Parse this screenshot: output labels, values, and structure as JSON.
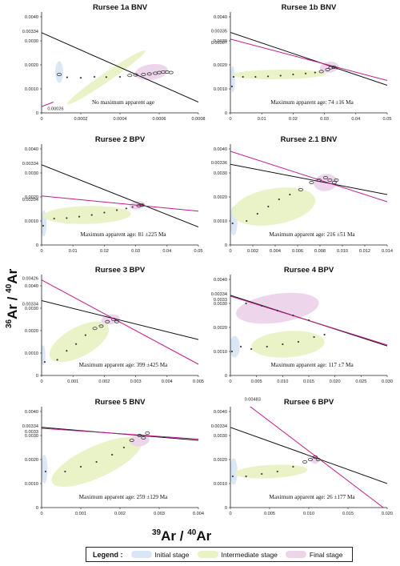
{
  "y_axis_label": "36Ar / 40Ar",
  "y_label_parts": {
    "sup1": "36",
    "base1": "Ar / ",
    "sup2": "40",
    "base2": "Ar"
  },
  "x_axis_label": "39Ar / 40Ar",
  "x_label_parts": {
    "sup1": "39",
    "base1": "Ar / ",
    "sup2": "40",
    "base2": "Ar"
  },
  "legend": {
    "title": "Legend :",
    "items": [
      {
        "label": "Initial stage",
        "color": "#d8e6f5"
      },
      {
        "label": "Intermediate stage",
        "color": "#e9f2c4"
      },
      {
        "label": "Final stage",
        "color": "#ecd4ea"
      }
    ]
  },
  "colors": {
    "line_black": "#111111",
    "line_magenta": "#c21c8c",
    "points": "#333333",
    "initial": "#d8e6f5",
    "intermediate": "#e9f2c4",
    "final": "#ecd4ea"
  },
  "chart_data": [
    {
      "type": "scatter",
      "title": "Rursee 1a BNV",
      "annotation": "No maximum apparent age",
      "xlim": [
        0,
        0.0008
      ],
      "ylim": [
        0,
        0.0042
      ],
      "x_ticks": [
        "0",
        "0.0002",
        "0.0004",
        "0.0006",
        "0.0008"
      ],
      "y_ticks": [
        "0",
        "0.0010",
        "0.0020",
        "0.0030",
        "0.0040"
      ],
      "special_y_labels": [
        {
          "value": 0.00334,
          "label": "0.00334"
        }
      ],
      "lines": [
        {
          "color": "black",
          "y0": 0.00334,
          "x_end": 0.0008,
          "y_end": 0.00045
        },
        {
          "color": "magenta",
          "y0": 0.00026,
          "x_end": 6e-05,
          "y_end": 0.00045
        }
      ],
      "line_labels": [
        {
          "text": "0.00026",
          "x": 3e-05,
          "y": 0.00012
        }
      ],
      "blobs": [
        {
          "stage": "initial",
          "cx": 9e-05,
          "cy": 0.0017,
          "w": 4e-05,
          "h": 0.0009
        },
        {
          "stage": "intermediate",
          "cx": 0.00033,
          "cy": 0.00148,
          "w": 0.00048,
          "h": 0.00038
        },
        {
          "stage": "final",
          "cx": 0.00056,
          "cy": 0.0017,
          "w": 0.00017,
          "h": 0.00065
        }
      ],
      "points": [
        [
          9e-05,
          0.0016,
          2
        ],
        [
          0.00013,
          0.00148,
          1
        ],
        [
          0.0002,
          0.00146,
          1
        ],
        [
          0.00027,
          0.0015,
          1
        ],
        [
          0.00033,
          0.00149,
          1
        ],
        [
          0.0004,
          0.0015,
          1
        ],
        [
          0.00045,
          0.00156,
          2
        ],
        [
          0.00048,
          0.00158,
          2
        ],
        [
          0.00052,
          0.0016,
          2
        ],
        [
          0.00055,
          0.00162,
          2
        ],
        [
          0.00058,
          0.00165,
          2
        ],
        [
          0.0006,
          0.00168,
          2
        ],
        [
          0.00062,
          0.0017,
          2
        ],
        [
          0.00064,
          0.0017,
          2
        ],
        [
          0.00066,
          0.00168,
          2
        ]
      ]
    },
    {
      "type": "scatter",
      "title": "Rursee 1b BNV",
      "annotation": "Maximum apparent age: 74 ±16 Ma",
      "xlim": [
        0,
        0.05
      ],
      "ylim": [
        0,
        0.0042
      ],
      "x_ticks": [
        "0",
        "0.01",
        "0.02",
        "0.03",
        "0.04",
        "0.05"
      ],
      "y_ticks": [
        "0",
        "0.0010",
        "0.0020",
        "0.0030",
        "0.0040"
      ],
      "special_y_labels": [
        {
          "value": 0.00335,
          "label": "0.00335"
        },
        {
          "value": 0.00307,
          "label": "0.00307"
        }
      ],
      "lines": [
        {
          "color": "black",
          "y0": 0.00335,
          "x_end": 0.05,
          "y_end": 0.00115
        },
        {
          "color": "magenta",
          "y0": 0.00307,
          "x_end": 0.05,
          "y_end": 0.00135
        }
      ],
      "line_labels": [],
      "blobs": [
        {
          "stage": "initial",
          "cx": 0.0007,
          "cy": 0.0014,
          "w": 0.0016,
          "h": 0.0011
        },
        {
          "stage": "intermediate",
          "cx": 0.0155,
          "cy": 0.0016,
          "w": 0.03,
          "h": 0.0004
        },
        {
          "stage": "final",
          "cx": 0.0315,
          "cy": 0.0019,
          "w": 0.006,
          "h": 0.00045
        }
      ],
      "points": [
        [
          0.0005,
          0.0011,
          1
        ],
        [
          0.001,
          0.0015,
          1
        ],
        [
          0.004,
          0.0015,
          1
        ],
        [
          0.008,
          0.0015,
          1
        ],
        [
          0.012,
          0.00152,
          1
        ],
        [
          0.016,
          0.00155,
          1
        ],
        [
          0.02,
          0.0016,
          1
        ],
        [
          0.024,
          0.00164,
          1
        ],
        [
          0.027,
          0.00168,
          1
        ],
        [
          0.029,
          0.00172,
          2
        ],
        [
          0.031,
          0.0018,
          2
        ],
        [
          0.032,
          0.00188,
          2
        ],
        [
          0.033,
          0.0019,
          2
        ],
        [
          0.034,
          0.00185,
          1
        ]
      ]
    },
    {
      "type": "scatter",
      "title": "Rursee 2 BPV",
      "annotation": "Maximum apparent age: 81 ±225 Ma",
      "xlim": [
        0,
        0.05
      ],
      "ylim": [
        0,
        0.0042
      ],
      "x_ticks": [
        "0",
        "0.01",
        "0.02",
        "0.03",
        "0.04",
        "0.05"
      ],
      "y_ticks": [
        "0",
        "0.0010",
        "0.0020",
        "0.0030",
        "0.0040"
      ],
      "special_y_labels": [
        {
          "value": 0.00334,
          "label": "0.00334"
        },
        {
          "value": 0.00204,
          "label": "0.00204"
        }
      ],
      "lines": [
        {
          "color": "black",
          "y0": 0.00334,
          "x_end": 0.05,
          "y_end": 0.00075
        },
        {
          "color": "magenta",
          "y0": 0.00204,
          "x_end": 0.05,
          "y_end": 0.00141
        }
      ],
      "line_labels": [],
      "blobs": [
        {
          "stage": "initial",
          "cx": 0.0007,
          "cy": 0.0009,
          "w": 0.0017,
          "h": 0.0011
        },
        {
          "stage": "intermediate",
          "cx": 0.0145,
          "cy": 0.00125,
          "w": 0.028,
          "h": 0.00075
        },
        {
          "stage": "final",
          "cx": 0.0305,
          "cy": 0.00165,
          "w": 0.005,
          "h": 0.00035
        }
      ],
      "points": [
        [
          0.0005,
          0.0008,
          1
        ],
        [
          0.004,
          0.0011,
          1
        ],
        [
          0.008,
          0.00112,
          1
        ],
        [
          0.012,
          0.00118,
          1
        ],
        [
          0.016,
          0.00125,
          1
        ],
        [
          0.02,
          0.00135,
          1
        ],
        [
          0.024,
          0.00145,
          1
        ],
        [
          0.027,
          0.00152,
          1
        ],
        [
          0.029,
          0.00158,
          1
        ],
        [
          0.031,
          0.00163,
          2
        ],
        [
          0.032,
          0.00166,
          2
        ]
      ]
    },
    {
      "type": "scatter",
      "title": "Rursee 2.1 BNV",
      "annotation": "Maximum apparent age: 216 ±51 Ma",
      "xlim": [
        0,
        0.0145
      ],
      "ylim": [
        0,
        0.0042
      ],
      "x_ticks": [
        "0",
        "0.002",
        "0.004",
        "0.006",
        "0.008",
        "0.010",
        "0.012",
        "0.014"
      ],
      "y_ticks": [
        "0",
        "0.0010",
        "0.0020",
        "0.0030",
        "0.0040"
      ],
      "special_y_labels": [
        {
          "value": 0.00336,
          "label": "0.00336"
        }
      ],
      "lines": [
        {
          "color": "black",
          "y0": 0.00336,
          "x_end": 0.0145,
          "y_end": 0.0021
        },
        {
          "color": "magenta",
          "y0": 0.0039,
          "x_end": 0.0145,
          "y_end": 0.0018
        }
      ],
      "line_labels": [],
      "blobs": [
        {
          "stage": "initial",
          "cx": 0.0003,
          "cy": 0.001,
          "w": 0.0007,
          "h": 0.0012
        },
        {
          "stage": "intermediate",
          "cx": 0.004,
          "cy": 0.0016,
          "w": 0.0078,
          "h": 0.0015
        },
        {
          "stage": "final",
          "cx": 0.0088,
          "cy": 0.0026,
          "w": 0.0022,
          "h": 0.0007
        }
      ],
      "points": [
        [
          0.0002,
          0.0009,
          1
        ],
        [
          0.0015,
          0.001,
          1
        ],
        [
          0.0025,
          0.0013,
          1
        ],
        [
          0.0035,
          0.0016,
          1
        ],
        [
          0.0045,
          0.0019,
          1
        ],
        [
          0.0055,
          0.0021,
          1
        ],
        [
          0.0065,
          0.0023,
          2
        ],
        [
          0.0075,
          0.0026,
          2
        ],
        [
          0.0082,
          0.0027,
          2
        ],
        [
          0.0088,
          0.0028,
          2
        ],
        [
          0.0092,
          0.0027,
          2
        ],
        [
          0.0096,
          0.0026,
          2
        ],
        [
          0.0098,
          0.0027,
          2
        ]
      ]
    },
    {
      "type": "scatter",
      "title": "Rursee 3 BPV",
      "annotation": "Maximum apparent age: 399 ±425 Ma",
      "xlim": [
        0,
        0.005
      ],
      "ylim": [
        0,
        0.0045
      ],
      "x_ticks": [
        "0",
        "0.001",
        "0.002",
        "0.003",
        "0.004",
        "0.005"
      ],
      "y_ticks": [
        "0",
        "0.0010",
        "0.0020",
        "0.0030",
        "0.0040"
      ],
      "special_y_labels": [
        {
          "value": 0.00426,
          "label": "0.00426"
        },
        {
          "value": 0.00334,
          "label": "0.00334"
        }
      ],
      "lines": [
        {
          "color": "black",
          "y0": 0.00334,
          "x_end": 0.005,
          "y_end": 0.0016
        },
        {
          "color": "magenta",
          "y0": 0.00426,
          "x_end": 0.005,
          "y_end": 0.0005
        }
      ],
      "line_labels": [],
      "blobs": [
        {
          "stage": "initial",
          "cx": 5e-05,
          "cy": 0.0009,
          "w": 0.00014,
          "h": 0.0009
        },
        {
          "stage": "intermediate",
          "cx": 0.0012,
          "cy": 0.0015,
          "w": 0.0021,
          "h": 0.0013
        },
        {
          "stage": "final",
          "cx": 0.0022,
          "cy": 0.0025,
          "w": 0.0006,
          "h": 0.00045
        }
      ],
      "points": [
        [
          0.0001,
          0.0006,
          1
        ],
        [
          0.0005,
          0.0007,
          1
        ],
        [
          0.0008,
          0.0011,
          1
        ],
        [
          0.0011,
          0.0014,
          1
        ],
        [
          0.0014,
          0.0018,
          1
        ],
        [
          0.0017,
          0.0021,
          2
        ],
        [
          0.0019,
          0.0022,
          2
        ],
        [
          0.0021,
          0.0024,
          2
        ],
        [
          0.0023,
          0.0025,
          2
        ],
        [
          0.0024,
          0.0024,
          2
        ]
      ]
    },
    {
      "type": "scatter",
      "title": "Rursee 4 BPV",
      "annotation": "Maximum apparent age: 117 ±7 Ma",
      "xlim": [
        0,
        0.03
      ],
      "ylim": [
        0,
        0.0042
      ],
      "x_ticks": [
        "0",
        "0.005",
        "0.010",
        "0.015",
        "0.020",
        "0.025",
        "0.030"
      ],
      "y_ticks": [
        "0",
        "0.0010",
        "0.0020",
        "0.0030",
        "0.0040"
      ],
      "special_y_labels": [
        {
          "value": 0.00334,
          "label": "0.00334"
        },
        {
          "value": 0.0033,
          "label": "0.0033"
        }
      ],
      "lines": [
        {
          "color": "black",
          "y0": 0.00334,
          "x_end": 0.03,
          "y_end": 0.00123
        },
        {
          "color": "magenta",
          "y0": 0.0033,
          "x_end": 0.03,
          "y_end": 0.00127
        }
      ],
      "line_labels": [],
      "blobs": [
        {
          "stage": "initial",
          "cx": 0.0008,
          "cy": 0.0012,
          "w": 0.002,
          "h": 0.0009
        },
        {
          "stage": "intermediate",
          "cx": 0.011,
          "cy": 0.0013,
          "w": 0.014,
          "h": 0.0011
        },
        {
          "stage": "final",
          "cx": 0.009,
          "cy": 0.0028,
          "w": 0.016,
          "h": 0.0012
        }
      ],
      "points": [
        [
          0.0003,
          0.001,
          1
        ],
        [
          0.002,
          0.0012,
          1
        ],
        [
          0.004,
          0.0011,
          1
        ],
        [
          0.007,
          0.0012,
          1
        ],
        [
          0.01,
          0.0013,
          1
        ],
        [
          0.013,
          0.0014,
          1
        ],
        [
          0.016,
          0.0016,
          1
        ],
        [
          0.018,
          0.0017,
          1
        ],
        [
          0.003,
          0.003,
          1
        ],
        [
          0.006,
          0.0029,
          1
        ],
        [
          0.009,
          0.0027,
          1
        ],
        [
          0.012,
          0.0025,
          1
        ],
        [
          0.015,
          0.0023,
          1
        ]
      ]
    },
    {
      "type": "scatter",
      "title": "Rursee 5 BNV",
      "annotation": "Maximum apparent age: 259 ±129 Ma",
      "xlim": [
        0,
        0.004
      ],
      "ylim": [
        0,
        0.0042
      ],
      "x_ticks": [
        "0",
        "0.001",
        "0.002",
        "0.003",
        "0.004"
      ],
      "y_ticks": [
        "0",
        "0.0010",
        "0.0020",
        "0.0030",
        "0.0040"
      ],
      "special_y_labels": [
        {
          "value": 0.00334,
          "label": "0.00334"
        },
        {
          "value": 0.0033,
          "label": "0.0033"
        }
      ],
      "lines": [
        {
          "color": "black",
          "y0": 0.00334,
          "x_end": 0.004,
          "y_end": 0.0028
        },
        {
          "color": "magenta",
          "y0": 0.0033,
          "x_end": 0.004,
          "y_end": 0.00285
        }
      ],
      "line_labels": [],
      "blobs": [
        {
          "stage": "initial",
          "cx": 7e-05,
          "cy": 0.0016,
          "w": 0.00016,
          "h": 0.0012
        },
        {
          "stage": "intermediate",
          "cx": 0.0014,
          "cy": 0.0019,
          "w": 0.0025,
          "h": 0.0013
        },
        {
          "stage": "final",
          "cx": 0.0025,
          "cy": 0.0028,
          "w": 0.0005,
          "h": 0.0005
        }
      ],
      "points": [
        [
          0.0001,
          0.0015,
          1
        ],
        [
          0.0006,
          0.0015,
          1
        ],
        [
          0.001,
          0.0017,
          1
        ],
        [
          0.0014,
          0.0019,
          1
        ],
        [
          0.0018,
          0.0022,
          1
        ],
        [
          0.0021,
          0.0025,
          1
        ],
        [
          0.0023,
          0.0028,
          2
        ],
        [
          0.0025,
          0.003,
          2
        ],
        [
          0.0026,
          0.0029,
          2
        ],
        [
          0.0027,
          0.0031,
          2
        ]
      ]
    },
    {
      "type": "scatter",
      "title": "Rursee 6 BPV",
      "annotation": "Maximum apparent age: 26 ±177 Ma",
      "xlim": [
        0,
        0.02
      ],
      "ylim": [
        0,
        0.0042
      ],
      "x_ticks": [
        "0",
        "0.005",
        "0.010",
        "0.015",
        "0.020"
      ],
      "y_ticks": [
        "0",
        "0.0010",
        "0.0020",
        "0.0030",
        "0.0040"
      ],
      "special_y_labels": [
        {
          "value": 0.00334,
          "label": "0.00334"
        }
      ],
      "lines": [
        {
          "color": "black",
          "y0": 0.00334,
          "x_end": 0.02,
          "y_end": 0.001
        },
        {
          "color": "magenta",
          "y0": 0.00483,
          "x_end": 0.0195,
          "y_end": 0
        }
      ],
      "line_labels": [
        {
          "text": "0.00483",
          "x": 0.0018,
          "y": 0.00445
        }
      ],
      "blobs": [
        {
          "stage": "initial",
          "cx": 0.0004,
          "cy": 0.0015,
          "w": 0.001,
          "h": 0.0011
        },
        {
          "stage": "intermediate",
          "cx": 0.0052,
          "cy": 0.0015,
          "w": 0.0093,
          "h": 0.00055
        },
        {
          "stage": "final",
          "cx": 0.0108,
          "cy": 0.002,
          "w": 0.0011,
          "h": 0.00035
        }
      ],
      "points": [
        [
          0.0003,
          0.0013,
          1
        ],
        [
          0.002,
          0.0013,
          1
        ],
        [
          0.004,
          0.0014,
          1
        ],
        [
          0.006,
          0.0015,
          1
        ],
        [
          0.008,
          0.0017,
          1
        ],
        [
          0.0095,
          0.0019,
          2
        ],
        [
          0.0102,
          0.002,
          2
        ],
        [
          0.0108,
          0.0021,
          2
        ],
        [
          0.0112,
          0.002,
          2
        ]
      ]
    }
  ]
}
